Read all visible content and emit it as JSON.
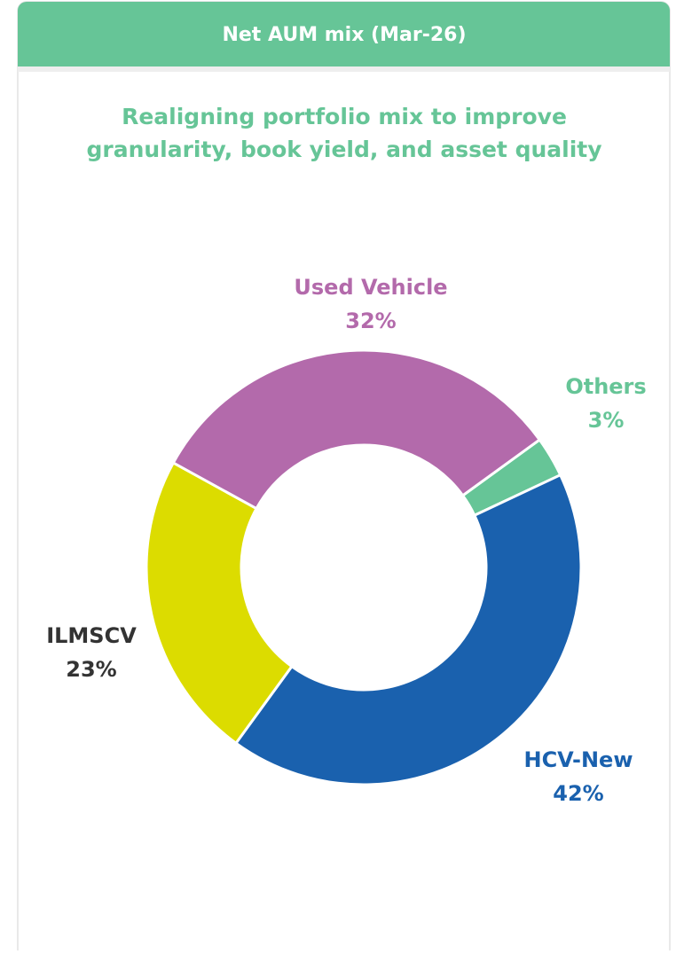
{
  "chart_data": {
    "type": "donut",
    "title": "Net AUM mix (Mar-26)",
    "subtitle": [
      "Realigning portfolio mix to improve",
      "granularity, book yield, and asset quality"
    ],
    "categories": [
      "Others",
      "HCV-New",
      "ILMSCV",
      "Used Vehicle"
    ],
    "values": [
      3,
      42,
      23,
      32
    ],
    "value_labels": [
      "3%",
      "42%",
      "23%",
      "32%"
    ],
    "colors": [
      "#66c597",
      "#1a61ae",
      "#dcdc00",
      "#b36aab"
    ],
    "label_colors": [
      "#66c597",
      "#1a61ae",
      "#333333",
      "#b36aab"
    ]
  }
}
